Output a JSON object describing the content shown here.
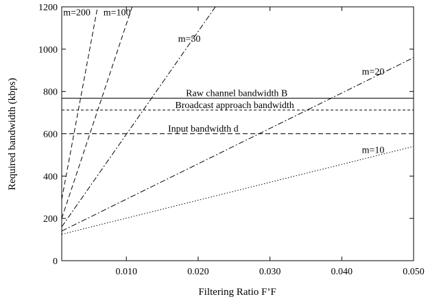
{
  "chart_data": {
    "type": "line",
    "xlabel": "Filtering Ratio F’F",
    "ylabel": "Required bandwidth (kbps)",
    "xlim": [
      0.001,
      0.05
    ],
    "ylim": [
      0,
      1200
    ],
    "x_ticks": [
      0.01,
      0.02,
      0.03,
      0.04,
      0.05
    ],
    "x_tick_labels": [
      "0.010",
      "0.020",
      "0.030",
      "0.040",
      "0.050"
    ],
    "y_ticks": [
      0,
      200,
      400,
      600,
      800,
      1000,
      1200
    ],
    "y_tick_labels": [
      "0",
      "200",
      "400",
      "600",
      "800",
      "1000",
      "1200"
    ],
    "grid": false,
    "series": [
      {
        "name": "m=200",
        "dash": "dashed",
        "x": [
          0.001,
          0.006
        ],
        "y": [
          290,
          1200
        ]
      },
      {
        "name": "m=100",
        "dash": "dashed",
        "x": [
          0.001,
          0.0108
        ],
        "y": [
          200,
          1200
        ]
      },
      {
        "name": "m=50",
        "dash": "dashdot",
        "x": [
          0.001,
          0.0224
        ],
        "y": [
          160,
          1200
        ]
      },
      {
        "name": "m=20",
        "dash": "dashdot",
        "x": [
          0.001,
          0.05
        ],
        "y": [
          140,
          960
        ]
      },
      {
        "name": "m=10",
        "dash": "dotted",
        "x": [
          0.001,
          0.05
        ],
        "y": [
          125,
          540
        ]
      }
    ],
    "hlines": [
      {
        "name": "Raw channel bandwidth B",
        "y": 768,
        "dash": "solid"
      },
      {
        "name": "Broadcast approach bandwidth",
        "y": 712,
        "dash": "dashed-fine"
      },
      {
        "name": "Input bandwidth d",
        "y": 600,
        "dash": "dashed"
      }
    ],
    "annotations": [
      {
        "text": "m=200",
        "x": 0.0012,
        "y": 1160
      },
      {
        "text": "m=100",
        "x": 0.0068,
        "y": 1160
      },
      {
        "text": "m=50",
        "x": 0.0172,
        "y": 1035
      },
      {
        "text": "m=20",
        "x": 0.0428,
        "y": 880
      },
      {
        "text": "m=10",
        "x": 0.0428,
        "y": 510
      },
      {
        "text": "Raw channel bandwidth B",
        "x": 0.0183,
        "y": 778
      },
      {
        "text": "Broadcast approach bandwidth",
        "x": 0.0168,
        "y": 722
      },
      {
        "text": "Input bandwidth d",
        "x": 0.0158,
        "y": 610
      }
    ]
  }
}
